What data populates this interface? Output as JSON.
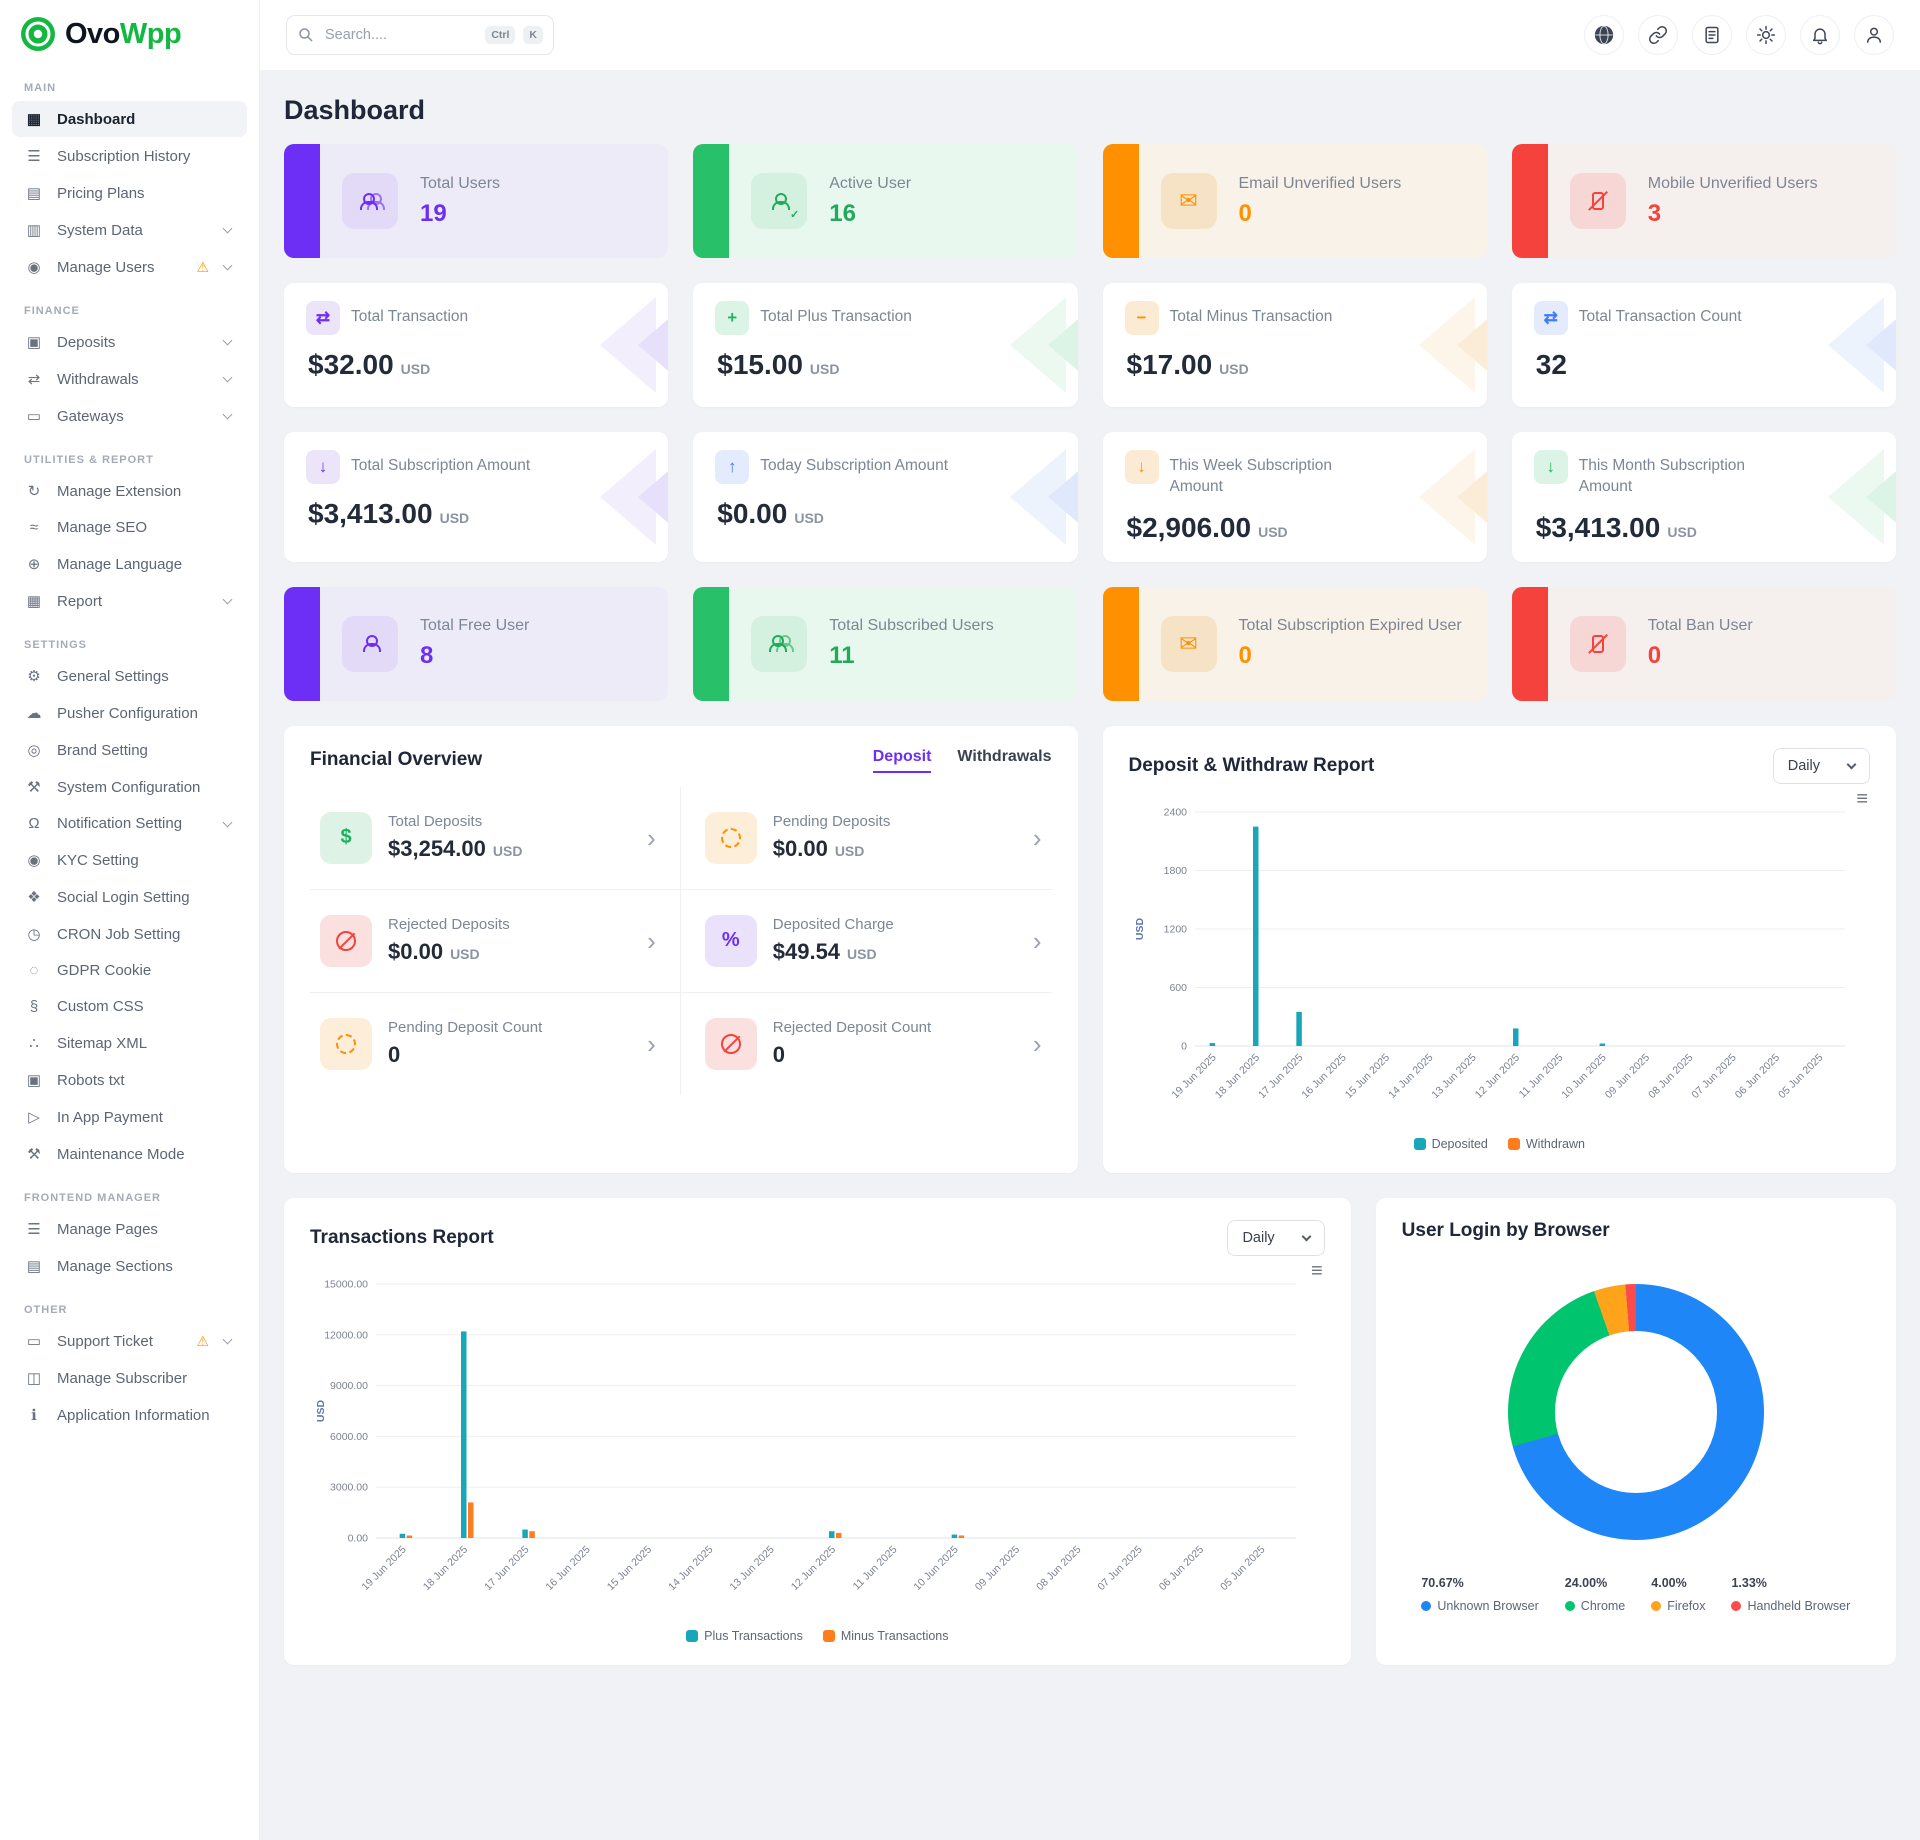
{
  "brand": {
    "prefix": "Ovo",
    "suffix": "Wpp"
  },
  "topbar": {
    "search_placeholder": "Search....",
    "shortcut_keys": [
      "Ctrl",
      "K"
    ],
    "icons": [
      "globe-icon",
      "link-icon",
      "translate-icon",
      "theme-icon",
      "notification-bell-icon",
      "profile-icon"
    ]
  },
  "page_title": "Dashboard",
  "colors": {
    "purple": "#6d2ef5",
    "green": "#24b860",
    "orange": "#ff9100",
    "red": "#f5423d",
    "blue": "#3e7bfa",
    "teal": "#18a7b9",
    "chart_orange": "#ff7d1f",
    "brand_green": "#14b841"
  },
  "sidebar": {
    "sections": [
      {
        "title": "MAIN",
        "items": [
          {
            "label": "Dashboard",
            "icon": "dashboard-icon",
            "active": true
          },
          {
            "label": "Subscription History",
            "icon": "subscription-history-icon"
          },
          {
            "label": "Pricing Plans",
            "icon": "pricing-plans-icon"
          },
          {
            "label": "System Data",
            "icon": "system-data-icon",
            "chevron": true
          },
          {
            "label": "Manage Users",
            "icon": "manage-users-icon",
            "warning": true,
            "chevron": true
          }
        ]
      },
      {
        "title": "FINANCE",
        "items": [
          {
            "label": "Deposits",
            "icon": "deposits-icon",
            "chevron": true
          },
          {
            "label": "Withdrawals",
            "icon": "withdrawals-icon",
            "chevron": true
          },
          {
            "label": "Gateways",
            "icon": "gateways-icon",
            "chevron": true
          }
        ]
      },
      {
        "title": "UTILITIES & REPORT",
        "items": [
          {
            "label": "Manage Extension",
            "icon": "manage-extension-icon"
          },
          {
            "label": "Manage SEO",
            "icon": "manage-seo-icon"
          },
          {
            "label": "Manage Language",
            "icon": "manage-language-icon"
          },
          {
            "label": "Report",
            "icon": "report-icon",
            "chevron": true
          }
        ]
      },
      {
        "title": "SETTINGS",
        "items": [
          {
            "label": "General Settings",
            "icon": "general-settings-icon"
          },
          {
            "label": "Pusher Configuration",
            "icon": "pusher-configuration-icon"
          },
          {
            "label": "Brand Setting",
            "icon": "brand-setting-icon"
          },
          {
            "label": "System Configuration",
            "icon": "system-configuration-icon"
          },
          {
            "label": "Notification Setting",
            "icon": "notification-setting-icon",
            "chevron": true
          },
          {
            "label": "KYC Setting",
            "icon": "kyc-setting-icon"
          },
          {
            "label": "Social Login Setting",
            "icon": "social-login-setting-icon"
          },
          {
            "label": "CRON Job Setting",
            "icon": "cron-job-setting-icon"
          },
          {
            "label": "GDPR Cookie",
            "icon": "gdpr-cookie-icon"
          },
          {
            "label": "Custom CSS",
            "icon": "custom-css-icon"
          },
          {
            "label": "Sitemap XML",
            "icon": "sitemap-xml-icon"
          },
          {
            "label": "Robots txt",
            "icon": "robots-txt-icon"
          },
          {
            "label": "In App Payment",
            "icon": "in-app-payment-icon"
          },
          {
            "label": "Maintenance Mode",
            "icon": "maintenance-mode-icon"
          }
        ]
      },
      {
        "title": "FRONTEND MANAGER",
        "items": [
          {
            "label": "Manage Pages",
            "icon": "manage-pages-icon"
          },
          {
            "label": "Manage Sections",
            "icon": "manage-sections-icon"
          }
        ]
      },
      {
        "title": "OTHER",
        "items": [
          {
            "label": "Support Ticket",
            "icon": "support-ticket-icon",
            "warning": true,
            "chevron": true
          },
          {
            "label": "Manage Subscriber",
            "icon": "manage-subscriber-icon"
          },
          {
            "label": "Application Information",
            "icon": "application-information-icon"
          }
        ]
      }
    ]
  },
  "stat_rows": [
    {
      "style": "accent",
      "cards": [
        {
          "color": "purple",
          "icon": "users-group-icon",
          "label": "Total Users",
          "value": "19"
        },
        {
          "color": "green",
          "icon": "user-check-icon",
          "label": "Active User",
          "value": "16"
        },
        {
          "color": "orange",
          "icon": "mail-icon",
          "label": "Email Unverified Users",
          "value": "0"
        },
        {
          "color": "red",
          "icon": "phone-slash-icon",
          "label": "Mobile Unverified Users",
          "value": "3"
        }
      ]
    },
    {
      "style": "plain",
      "cards": [
        {
          "color": "purple",
          "icon": "transfer-icon",
          "label": "Total Transaction",
          "value": "$32.00",
          "unit": "USD"
        },
        {
          "color": "green",
          "icon": "plus-icon",
          "label": "Total Plus Transaction",
          "value": "$15.00",
          "unit": "USD"
        },
        {
          "color": "orange",
          "icon": "minus-icon",
          "label": "Total Minus Transaction",
          "value": "$17.00",
          "unit": "USD"
        },
        {
          "color": "blue",
          "icon": "transfer-icon",
          "label": "Total Transaction Count",
          "value": "32",
          "unit": ""
        }
      ]
    },
    {
      "style": "plain",
      "cards": [
        {
          "color": "purple",
          "icon": "arrow-down-icon",
          "label": "Total Subscription Amount",
          "value": "$3,413.00",
          "unit": "USD"
        },
        {
          "color": "blue",
          "icon": "arrow-up-icon",
          "label": "Today Subscription Amount",
          "value": "$0.00",
          "unit": "USD"
        },
        {
          "color": "orange",
          "icon": "arrow-down-icon",
          "label": "This Week Subscription Amount",
          "value": "$2,906.00",
          "unit": "USD"
        },
        {
          "color": "green",
          "icon": "arrow-down-icon",
          "label": "This Month Subscription Amount",
          "value": "$3,413.00",
          "unit": "USD"
        }
      ]
    },
    {
      "style": "accent",
      "cards": [
        {
          "color": "purple",
          "icon": "user-icon",
          "label": "Total Free User",
          "value": "8"
        },
        {
          "color": "green",
          "icon": "users-group-icon",
          "label": "Total Subscribed Users",
          "value": "11"
        },
        {
          "color": "orange",
          "icon": "mail-icon",
          "label": "Total Subscription Expired User",
          "value": "0"
        },
        {
          "color": "red",
          "icon": "phone-slash-icon",
          "label": "Total Ban User",
          "value": "0"
        }
      ]
    }
  ],
  "financial_overview": {
    "title": "Financial Overview",
    "tabs": [
      {
        "label": "Deposit",
        "active": true
      },
      {
        "label": "Withdrawals",
        "active": false
      }
    ],
    "items": [
      {
        "icon": "hand-dollar-icon",
        "color": "green",
        "label": "Total Deposits",
        "value": "$3,254.00",
        "unit": "USD"
      },
      {
        "icon": "pending-icon",
        "color": "orange",
        "label": "Pending Deposits",
        "value": "$0.00",
        "unit": "USD"
      },
      {
        "icon": "rejected-icon",
        "color": "red",
        "label": "Rejected Deposits",
        "value": "$0.00",
        "unit": "USD"
      },
      {
        "icon": "percent-icon",
        "color": "purple",
        "label": "Deposited Charge",
        "value": "$49.54",
        "unit": "USD"
      },
      {
        "icon": "pending-icon",
        "color": "orange",
        "label": "Pending Deposit Count",
        "value": "0",
        "unit": ""
      },
      {
        "icon": "rejected-icon",
        "color": "red",
        "label": "Rejected Deposit Count",
        "value": "0",
        "unit": ""
      }
    ]
  },
  "deposit_withdraw_report": {
    "title": "Deposit & Withdraw Report",
    "range_selector": "Daily",
    "y_axis_label": "USD"
  },
  "transactions_report": {
    "title": "Transactions Report",
    "range_selector": "Daily",
    "y_axis_label": "USD"
  },
  "browser_report": {
    "title": "User Login by Browser"
  },
  "chart_data": [
    {
      "name": "deposit_withdraw_report",
      "type": "bar",
      "title": "Deposit & Withdraw Report",
      "xlabel": "",
      "ylabel": "USD",
      "ylim": [
        0,
        2400
      ],
      "yticks": [
        0,
        600,
        1200,
        1800,
        2400
      ],
      "grid": true,
      "legend_position": "bottom",
      "categories": [
        "19 Jun 2025",
        "18 Jun 2025",
        "17 Jun 2025",
        "16 Jun 2025",
        "15 Jun 2025",
        "14 Jun 2025",
        "13 Jun 2025",
        "12 Jun 2025",
        "11 Jun 2025",
        "10 Jun 2025",
        "09 Jun 2025",
        "08 Jun 2025",
        "07 Jun 2025",
        "06 Jun 2025",
        "05 Jun 2025"
      ],
      "series": [
        {
          "name": "Deposited",
          "color": "#18a7b9",
          "values": [
            30,
            2250,
            350,
            0,
            0,
            0,
            0,
            180,
            0,
            15,
            0,
            0,
            0,
            0,
            0
          ]
        },
        {
          "name": "Withdrawn",
          "color": "#ff7d1f",
          "values": [
            0,
            0,
            0,
            0,
            0,
            0,
            0,
            0,
            0,
            0,
            0,
            0,
            0,
            0,
            0
          ]
        }
      ]
    },
    {
      "name": "transactions_report",
      "type": "bar",
      "title": "Transactions Report",
      "xlabel": "",
      "ylabel": "USD",
      "ylim": [
        0,
        15000
      ],
      "yticks": [
        "0.00",
        "3000.00",
        "6000.00",
        "9000.00",
        "12000.00",
        "15000.00"
      ],
      "grid": true,
      "legend_position": "bottom",
      "categories": [
        "19 Jun 2025",
        "18 Jun 2025",
        "17 Jun 2025",
        "16 Jun 2025",
        "15 Jun 2025",
        "14 Jun 2025",
        "13 Jun 2025",
        "12 Jun 2025",
        "11 Jun 2025",
        "10 Jun 2025",
        "09 Jun 2025",
        "08 Jun 2025",
        "07 Jun 2025",
        "06 Jun 2025",
        "05 Jun 2025"
      ],
      "series": [
        {
          "name": "Plus Transactions",
          "color": "#18a7b9",
          "values": [
            250,
            12200,
            500,
            0,
            0,
            0,
            0,
            400,
            0,
            200,
            0,
            0,
            0,
            0,
            0
          ]
        },
        {
          "name": "Minus Transactions",
          "color": "#ff7d1f",
          "values": [
            100,
            2100,
            400,
            0,
            0,
            0,
            0,
            300,
            0,
            150,
            0,
            0,
            0,
            0,
            0
          ]
        }
      ]
    },
    {
      "name": "user_login_by_browser",
      "type": "pie",
      "title": "User Login by Browser",
      "labels": [
        "Unknown Browser",
        "Chrome",
        "Firefox",
        "Handheld Browser"
      ],
      "values": [
        70.67,
        24.0,
        4.0,
        1.33
      ],
      "display_percents": [
        "70.67%",
        "24.00%",
        "4.00%",
        "1.33%"
      ],
      "colors": [
        "#1e86f7",
        "#00c56e",
        "#ffa31a",
        "#fb4b4b"
      ],
      "legend_position": "bottom"
    }
  ]
}
